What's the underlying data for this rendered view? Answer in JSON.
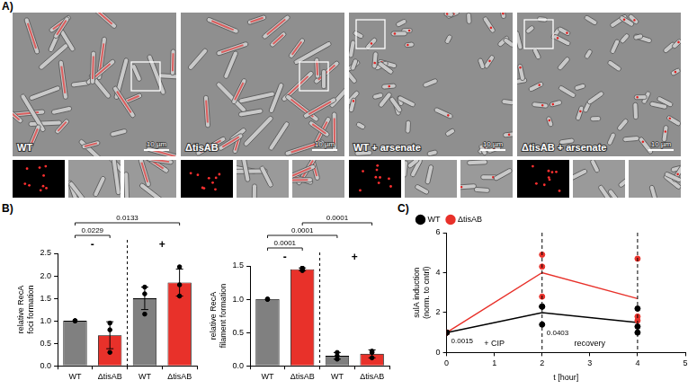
{
  "panel_A": {
    "panel": "A)",
    "images": [
      {
        "label": "WT",
        "scale_bar": "10 µm"
      },
      {
        "label": "ΔtisAB",
        "scale_bar": "10 µm"
      },
      {
        "label": "WT + arsenate",
        "scale_bar": "10 µm"
      },
      {
        "label": "ΔtisAB + arsenate",
        "scale_bar": "10 µm"
      }
    ]
  },
  "chart_data": [
    {
      "panel": "B)",
      "type": "bar",
      "y_label": "relative RecA foci formation",
      "categories": [
        "WT",
        "ΔtisAB",
        "WT",
        "ΔtisAB"
      ],
      "groups": [
        "-",
        "-",
        "+",
        "+"
      ],
      "values": [
        1.0,
        0.68,
        1.5,
        1.85
      ],
      "errors": [
        0,
        0.3,
        0.25,
        0.3
      ],
      "replicates": [
        [
          1,
          1,
          1
        ],
        [
          0.3,
          0.8,
          0.95
        ],
        [
          1.15,
          1.6,
          1.75
        ],
        [
          1.55,
          1.8,
          2.2
        ]
      ],
      "colors": [
        "#808080",
        "#e8312a",
        "#808080",
        "#e8312a"
      ],
      "ylim": [
        0,
        2.5
      ],
      "yticks": [
        {
          "value": 0,
          "label": "0.0"
        },
        {
          "value": 0.5,
          "label": "0.5"
        },
        {
          "value": 1,
          "label": "1.0"
        },
        {
          "value": 1.5,
          "label": "1.5"
        },
        {
          "value": 2,
          "label": "2.0"
        },
        {
          "value": 2.5,
          "label": "2.5"
        }
      ],
      "comparisons": [
        {
          "categories": [
            0,
            1
          ],
          "label": "0.0229"
        },
        {
          "categories": [
            0,
            3
          ],
          "label": "0.0133"
        }
      ],
      "grid": false
    },
    {
      "type": "bar",
      "y_label": "relative RecA filament formation",
      "categories": [
        "WT",
        "ΔtisAB",
        "WT",
        "ΔtisAB"
      ],
      "groups": [
        "-",
        "-",
        "+",
        "+"
      ],
      "values": [
        1.0,
        1.45,
        0.15,
        0.18
      ],
      "errors": [
        0,
        0.02,
        0.05,
        0.06
      ],
      "replicates": [
        [
          1,
          1,
          1
        ],
        [
          1.43,
          1.45,
          1.47
        ],
        [
          0.1,
          0.15,
          0.2
        ],
        [
          0.12,
          0.2,
          0.22
        ]
      ],
      "colors": [
        "#808080",
        "#e8312a",
        "#808080",
        "#e8312a"
      ],
      "ylim": [
        0,
        1.5
      ],
      "yticks": [
        {
          "value": 0,
          "label": "0.0"
        },
        {
          "value": 0.5,
          "label": "0.5"
        },
        {
          "value": 1,
          "label": "1.0"
        },
        {
          "value": 1.5,
          "label": "1.5"
        }
      ],
      "comparisons": [
        {
          "categories": [
            0,
            1
          ],
          "label": "0.0001"
        },
        {
          "categories": [
            0,
            2
          ],
          "label": "0.0001"
        },
        {
          "categories": [
            1,
            3
          ],
          "label": "0.0001"
        }
      ],
      "grid": false
    },
    {
      "panel": "C)",
      "type": "line",
      "x_label": "t [hour]",
      "y_label": "sulA induction (norm. to cntrl)",
      "x": [
        0,
        2,
        4
      ],
      "series": [
        {
          "name": "WT",
          "color": "#000000",
          "marker": "circle",
          "values": [
            1,
            2,
            1.5
          ],
          "replicates": [
            [
              1,
              1,
              1
            ],
            [
              2.3,
              2.3,
              1.4
            ],
            [
              1.0,
              1.3,
              2.2
            ]
          ]
        },
        {
          "name": "ΔtisAB",
          "color": "#e8312a",
          "marker": "circle",
          "values": [
            1,
            4,
            2.7
          ],
          "replicates": [
            [
              1,
              1,
              1
            ],
            [
              4.9,
              4.3,
              2.8
            ],
            [
              4.7,
              1.8,
              1.6
            ]
          ]
        }
      ],
      "xlim": [
        0,
        5
      ],
      "xticks": [
        0,
        1,
        2,
        3,
        4,
        5
      ],
      "ylim": [
        0,
        6
      ],
      "yticks": [
        0,
        2,
        4,
        6
      ],
      "reference_lines": {
        "x": [
          2,
          4
        ]
      },
      "annotations": [
        {
          "text": "+ CIP",
          "x": 1
        },
        {
          "text": "recovery",
          "x": 3
        }
      ],
      "p_values": [
        {
          "x": 0,
          "label": "0.0015"
        },
        {
          "x": 2,
          "label": "0.0403"
        }
      ],
      "legend": "top-left",
      "grid": false
    }
  ]
}
